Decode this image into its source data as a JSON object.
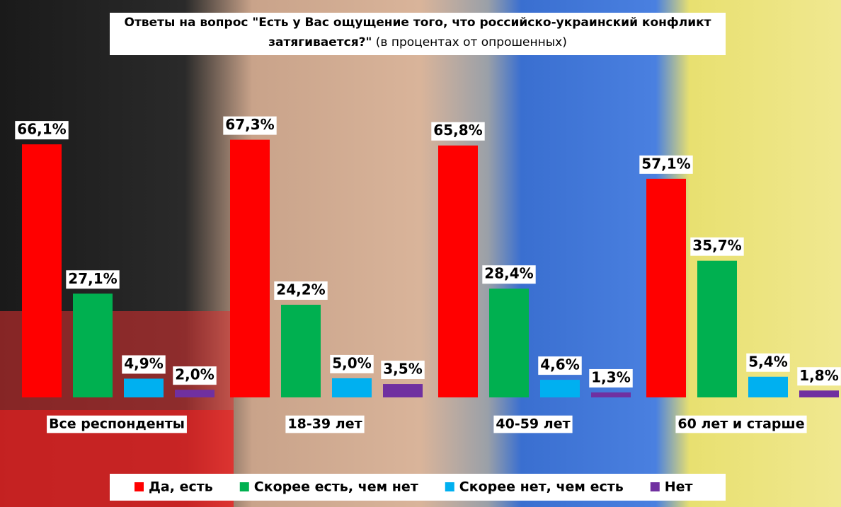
{
  "chart_data": {
    "type": "bar",
    "title": "Ответы на вопрос \"Есть у Вас ощущение того, что российско-украинский конфликт затягивается?\"",
    "subtitle": "(в процентах от опрошенных)",
    "categories": [
      "Все респонденты",
      "18-39 лет",
      "40-59 лет",
      "60 лет и старше"
    ],
    "series": [
      {
        "name": "Да, есть",
        "color": "#ff0000",
        "values": [
          66.1,
          67.3,
          65.8,
          57.1
        ],
        "value_labels": [
          "66,1%",
          "67,3%",
          "65,8%",
          "57,1%"
        ]
      },
      {
        "name": "Скорее есть, чем нет",
        "color": "#00b050",
        "values": [
          27.1,
          24.2,
          28.4,
          35.7
        ],
        "value_labels": [
          "27,1%",
          "24,2%",
          "28,4%",
          "35,7%"
        ]
      },
      {
        "name": "Скорее нет, чем есть",
        "color": "#00b0f0",
        "values": [
          4.9,
          5.0,
          4.6,
          5.4
        ],
        "value_labels": [
          "4,9%",
          "5,0%",
          "4,6%",
          "5,4%"
        ]
      },
      {
        "name": "Нет",
        "color": "#7030a0",
        "values": [
          2.0,
          3.5,
          1.3,
          1.8
        ],
        "value_labels": [
          "2,0%",
          "3,5%",
          "1,3%",
          "1,8%"
        ]
      }
    ],
    "ylim": [
      0,
      70
    ]
  }
}
